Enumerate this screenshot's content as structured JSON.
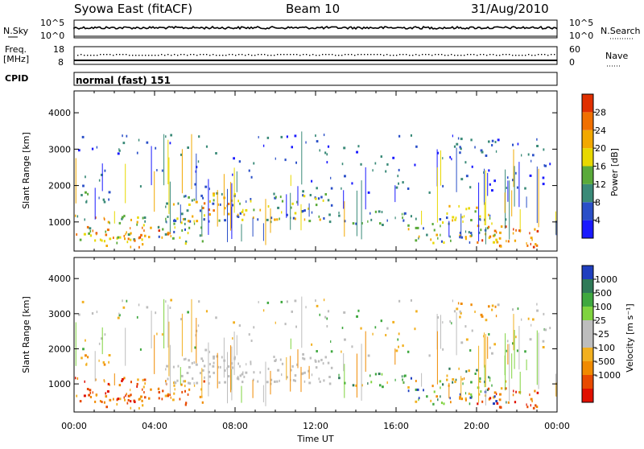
{
  "header": {
    "title": "Syowa East (fitACF)",
    "beam": "Beam 10",
    "date": "31/Aug/2010"
  },
  "top_panels": {
    "nsky_label": "N.Sky",
    "nsky_ticks": [
      "10^5",
      "10^0"
    ],
    "nsearch_label": "N.Search",
    "nsearch_ticks": [
      "10^5",
      "10^0"
    ],
    "freq_label_line1": "Freq.",
    "freq_label_line2": "[MHz]",
    "freq_ticks": [
      "18",
      "8"
    ],
    "nave_label": "Nave",
    "nave_ticks": [
      "60",
      "0"
    ],
    "cpid_label": "CPID",
    "cpid_value": "normal (fast) 151"
  },
  "chart_data": [
    {
      "type": "heatmap",
      "panel": "power",
      "xlabel": "",
      "ylabel": "Slant Range [km]",
      "x_ticks": [
        "00:00",
        "04:00",
        "08:00",
        "12:00",
        "16:00",
        "20:00",
        "00:00"
      ],
      "xlim_hours": [
        0,
        24
      ],
      "ylim": [
        200,
        4600
      ],
      "y_ticks": [
        1000,
        2000,
        3000,
        4000
      ],
      "colorbar_label": "Power [dB]",
      "colorbar_ticks": [
        "4",
        "8",
        "12",
        "16",
        "20",
        "24",
        "28"
      ],
      "colorbar_range": [
        0,
        30
      ],
      "colors": [
        "#1a1aff",
        "#2a4fc8",
        "#3a8a78",
        "#5aaa3a",
        "#e8d800",
        "#f2a800",
        "#f07000",
        "#e03000"
      ]
    },
    {
      "type": "heatmap",
      "panel": "velocity",
      "xlabel": "Time UT",
      "ylabel": "Slant Range [km]",
      "x_ticks": [
        "00:00",
        "04:00",
        "08:00",
        "12:00",
        "16:00",
        "20:00",
        "00:00"
      ],
      "xlim_hours": [
        0,
        24
      ],
      "ylim": [
        200,
        4600
      ],
      "y_ticks": [
        1000,
        2000,
        3000,
        4000
      ],
      "colorbar_label": "Velocity [m s⁻¹]",
      "colorbar_ticks": [
        "1000",
        "500",
        "100",
        "25",
        "-25",
        "-100",
        "-500",
        "-1000"
      ],
      "colors": [
        "#1f3fbf",
        "#2f7a58",
        "#3fa83f",
        "#7fd33f",
        "#bdbdbd",
        "#bdbdbd",
        "#f2b020",
        "#f08a00",
        "#e84a00",
        "#e01000"
      ]
    }
  ]
}
